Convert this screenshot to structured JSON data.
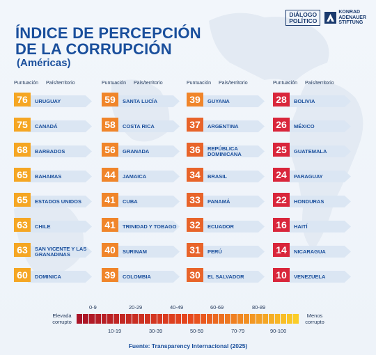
{
  "header": {
    "title_line1": "ÍNDICE DE PERCEPCIÓN",
    "title_line2": "DE LA CORRUPCIÓN",
    "subtitle": "(Américas)",
    "logo_dp_line1": "DIÁLOGO",
    "logo_dp_line2": "POLÍTICO",
    "logo_kas_line1": "KONRAD",
    "logo_kas_line2": "ADENAUER",
    "logo_kas_line3": "STIFTUNG"
  },
  "column_headers": {
    "score": "Puntuación",
    "country": "País/territorio"
  },
  "colors": {
    "orange_high": "#f5a623",
    "orange_mid": "#f0852a",
    "orange_low": "#e8642a",
    "red": "#d9263b",
    "title_blue": "#1a4f9c"
  },
  "columns": [
    [
      {
        "score": "76",
        "country": "URUGUAY"
      },
      {
        "score": "75",
        "country": "CANADÁ"
      },
      {
        "score": "68",
        "country": "BARBADOS"
      },
      {
        "score": "65",
        "country": "BAHAMAS"
      },
      {
        "score": "65",
        "country": "ESTADOS UNIDOS"
      },
      {
        "score": "63",
        "country": "CHILE"
      },
      {
        "score": "63",
        "country": "SAN VICENTE Y LAS GRANADINAS"
      },
      {
        "score": "60",
        "country": "DOMINICA"
      }
    ],
    [
      {
        "score": "59",
        "country": "SANTA LUCÍA"
      },
      {
        "score": "58",
        "country": "COSTA RICA"
      },
      {
        "score": "56",
        "country": "GRANADA"
      },
      {
        "score": "44",
        "country": "JAMAICA"
      },
      {
        "score": "41",
        "country": "CUBA"
      },
      {
        "score": "41",
        "country": "TRINIDAD Y TOBAGO"
      },
      {
        "score": "40",
        "country": "SURINAM"
      },
      {
        "score": "39",
        "country": "COLOMBIA"
      }
    ],
    [
      {
        "score": "39",
        "country": "GUYANA"
      },
      {
        "score": "37",
        "country": "ARGENTINA"
      },
      {
        "score": "36",
        "country": "REPÚBLICA DOMINICANA"
      },
      {
        "score": "34",
        "country": "BRASIL"
      },
      {
        "score": "33",
        "country": "PANAMÁ"
      },
      {
        "score": "32",
        "country": "ECUADOR"
      },
      {
        "score": "31",
        "country": "PERÚ"
      },
      {
        "score": "30",
        "country": "EL SALVADOR"
      }
    ],
    [
      {
        "score": "28",
        "country": "BOLIVIA"
      },
      {
        "score": "26",
        "country": "MÉXICO"
      },
      {
        "score": "25",
        "country": "GUATEMALA"
      },
      {
        "score": "24",
        "country": "PARAGUAY"
      },
      {
        "score": "22",
        "country": "HONDURAS"
      },
      {
        "score": "16",
        "country": "HAITÍ"
      },
      {
        "score": "14",
        "country": "NICARAGUA"
      },
      {
        "score": "10",
        "country": "VENEZUELA"
      }
    ]
  ],
  "legend": {
    "left_label": "Elevada corrupto",
    "right_label": "Menos corrupto",
    "top_ranges": [
      "0-9",
      "20-29",
      "40-49",
      "60-69",
      "80-89"
    ],
    "bottom_ranges": [
      "10-19",
      "30-39",
      "50-59",
      "70-79",
      "90-100"
    ]
  },
  "source": "Fuente: Transparency Internacional (2025)"
}
